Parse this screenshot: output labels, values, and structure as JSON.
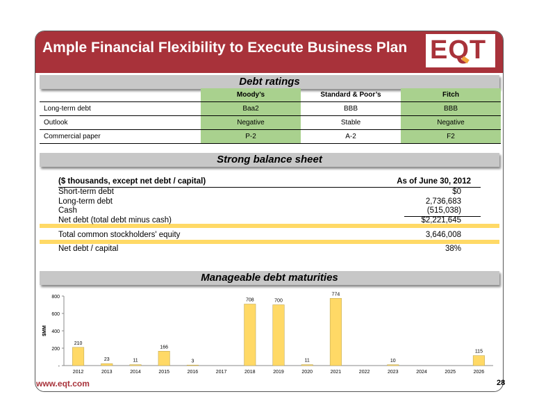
{
  "header": {
    "title": "Ample Financial Flexibility to Execute Business Plan",
    "logo_text": "EQT"
  },
  "ratings": {
    "section_title": "Debt ratings",
    "columns": [
      "Moody’s",
      "Standard & Poor’s",
      "Fitch"
    ],
    "rows": [
      {
        "label": "Long-term debt",
        "values": [
          "Baa2",
          "BBB",
          "BBB"
        ]
      },
      {
        "label": "Outlook",
        "values": [
          "Negative",
          "Stable",
          "Negative"
        ]
      },
      {
        "label": "Commercial paper",
        "values": [
          "P-2",
          "A-2",
          "F2"
        ]
      }
    ]
  },
  "balance": {
    "section_title": "Strong balance sheet",
    "header_label": "($ thousands, except net debt / capital)",
    "header_value": "As of June 30, 2012",
    "rows": [
      {
        "label": "Short-term debt",
        "value": "$0"
      },
      {
        "label": "Long-term debt",
        "value": "2,736,683"
      },
      {
        "label": "Cash",
        "value": "(515,038)"
      },
      {
        "label": "Net debt (total debt minus cash)",
        "value": "$2,221,645"
      },
      {
        "label": "Total common stockholders' equity",
        "value": "3,646,008"
      },
      {
        "label": "Net debt / capital",
        "value": "38%"
      }
    ],
    "highlight_color": "#ffd966"
  },
  "maturities": {
    "section_title": "Manageable debt maturities"
  },
  "chart_data": {
    "type": "bar",
    "categories": [
      "2012",
      "2013",
      "2014",
      "2015",
      "2016",
      "2017",
      "2018",
      "2019",
      "2020",
      "2021",
      "2022",
      "2023",
      "2024",
      "2025",
      "2026"
    ],
    "values": [
      210,
      23,
      11,
      166,
      3,
      null,
      708,
      700,
      11,
      774,
      null,
      10,
      null,
      null,
      115
    ],
    "labels": [
      "210",
      "23",
      "11",
      "166",
      "3",
      "",
      "708",
      "700",
      "11",
      "774",
      "",
      "10",
      "",
      "",
      "115"
    ],
    "ylabel": "$MM",
    "ylim": [
      0,
      800
    ],
    "yticks": [
      0,
      200,
      400,
      600,
      800
    ],
    "ytick_labels": [
      "-",
      "200",
      "400",
      "600",
      "800"
    ],
    "bar_color": "#ffd966",
    "grid": false
  },
  "footer": {
    "url": "www.eqt.com",
    "page": "28"
  },
  "colors": {
    "brand": "#a8323a",
    "rating_green": "#a9d18e",
    "section_gray": "#c7c7c7"
  }
}
